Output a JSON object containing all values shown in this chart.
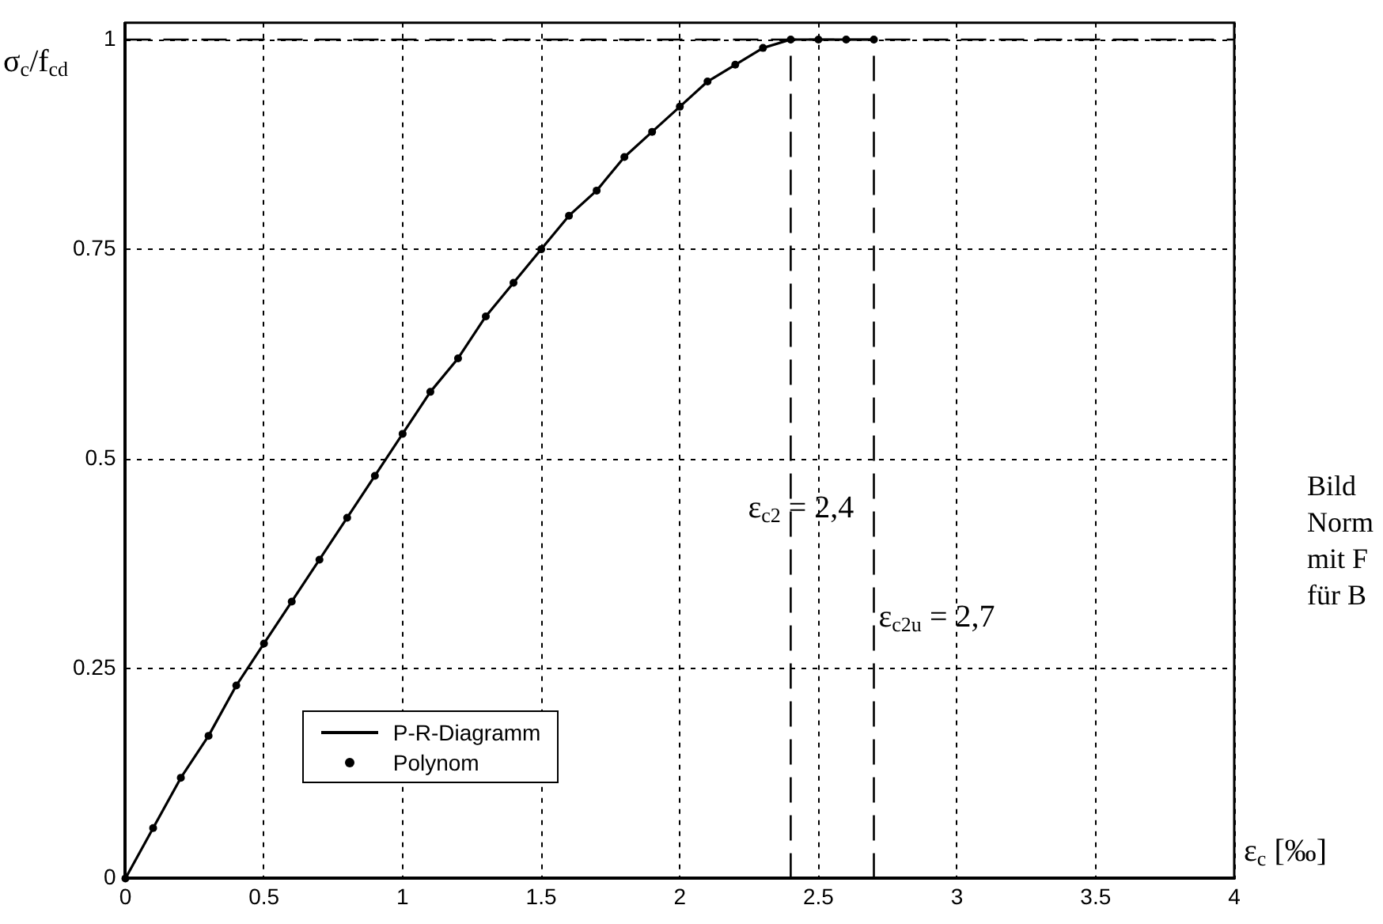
{
  "chart_data": {
    "type": "line",
    "xlabel": "ε$_{c}$ [‰]",
    "ylabel": "σ$_{c}$/f$_{cd}$",
    "xlim": [
      0,
      4
    ],
    "ylim": [
      0,
      1.02
    ],
    "xticks": [
      0,
      0.5,
      1,
      1.5,
      2,
      2.5,
      3,
      3.5,
      4
    ],
    "yticks": [
      0,
      0.25,
      0.5,
      0.75,
      1
    ],
    "grid": true,
    "legend": "bottom left",
    "series": [
      {
        "name": "P-R-Diagramm",
        "color": "#000000",
        "marker": "none",
        "line_style": "solid",
        "x": [
          0,
          0.1,
          0.2,
          0.3,
          0.4,
          0.5,
          0.6,
          0.7,
          0.8,
          0.9,
          1,
          1.1,
          1.2,
          1.3,
          1.4,
          1.5,
          1.6,
          1.7,
          1.8,
          1.9,
          2,
          2.1,
          2.2,
          2.3,
          2.4,
          2.7
        ],
        "values": [
          0,
          0.06,
          0.12,
          0.17,
          0.23,
          0.28,
          0.33,
          0.38,
          0.43,
          0.48,
          0.53,
          0.58,
          0.62,
          0.67,
          0.71,
          0.75,
          0.79,
          0.82,
          0.86,
          0.89,
          0.92,
          0.95,
          0.97,
          0.99,
          1,
          1
        ]
      },
      {
        "name": "Polynom",
        "type": "scatter",
        "color": "#000000",
        "marker": "circle",
        "x": [
          0,
          0.1,
          0.2,
          0.3,
          0.4,
          0.5,
          0.6,
          0.7,
          0.8,
          0.9,
          1,
          1.1,
          1.2,
          1.3,
          1.4,
          1.5,
          1.6,
          1.7,
          1.8,
          1.9,
          2,
          2.1,
          2.2,
          2.3,
          2.4,
          2.5,
          2.6,
          2.7
        ],
        "values": [
          0,
          0.06,
          0.12,
          0.17,
          0.23,
          0.28,
          0.33,
          0.38,
          0.43,
          0.48,
          0.53,
          0.58,
          0.62,
          0.67,
          0.71,
          0.75,
          0.79,
          0.82,
          0.86,
          0.89,
          0.92,
          0.95,
          0.97,
          0.99,
          1,
          1,
          1,
          1
        ]
      }
    ],
    "ref_lines": [
      {
        "axis": "y",
        "value": 1,
        "line_style": "dashed"
      },
      {
        "axis": "x",
        "value": 2.4,
        "label": "ε$_{c2}$ = 2,4",
        "line_style": "dashed"
      },
      {
        "axis": "x",
        "value": 2.7,
        "label": "ε$_{c2u}$ = 2,7",
        "line_style": "dashed"
      }
    ],
    "annotations": [
      "Bild",
      "Norm",
      "mit F",
      "für B"
    ]
  }
}
